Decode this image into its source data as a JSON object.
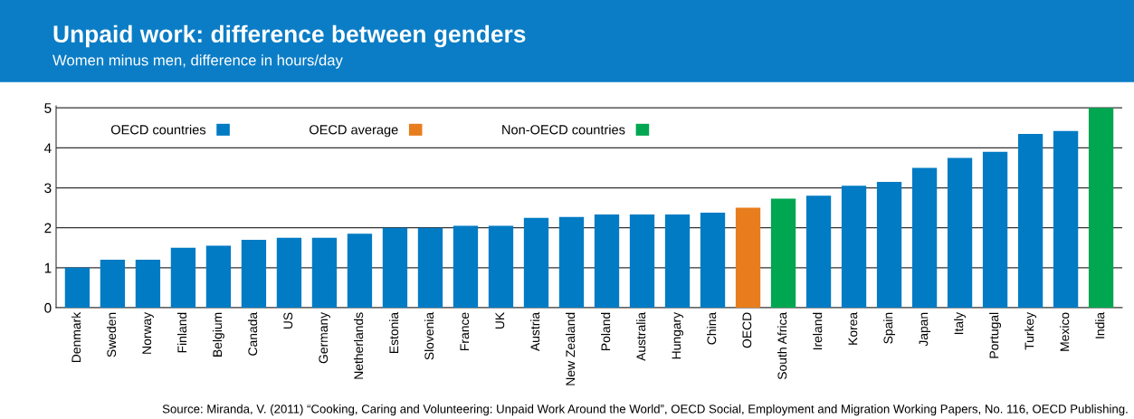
{
  "chart_data": {
    "type": "bar",
    "title": "Unpaid work: difference between genders",
    "subtitle": "Women minus men, difference in hours/day",
    "categories": [
      "Denmark",
      "Sweden",
      "Norway",
      "Finland",
      "Belgium",
      "Canada",
      "US",
      "Germany",
      "Netherlands",
      "Estonia",
      "Slovenia",
      "France",
      "UK",
      "Austria",
      "New Zealand",
      "Poland",
      "Australia",
      "Hungary",
      "China",
      "OECD",
      "South Africa",
      "Ireland",
      "Korea",
      "Spain",
      "Japan",
      "Italy",
      "Portugal",
      "Turkey",
      "Mexico",
      "India"
    ],
    "series": [
      {
        "name": "OECD countries",
        "color": "#007bc4",
        "values": [
          1.0,
          1.2,
          1.2,
          1.5,
          1.55,
          1.7,
          1.75,
          1.75,
          1.85,
          2.0,
          2.0,
          2.05,
          2.05,
          2.25,
          2.27,
          2.33,
          2.33,
          2.33,
          2.38,
          null,
          null,
          2.8,
          3.05,
          3.15,
          3.5,
          3.75,
          3.9,
          4.35,
          4.42,
          null
        ]
      },
      {
        "name": "OECD average",
        "color": "#e87d1e",
        "values": [
          null,
          null,
          null,
          null,
          null,
          null,
          null,
          null,
          null,
          null,
          null,
          null,
          null,
          null,
          null,
          null,
          null,
          null,
          null,
          2.5,
          null,
          null,
          null,
          null,
          null,
          null,
          null,
          null,
          null,
          null
        ]
      },
      {
        "name": "Non-OECD countries",
        "color": "#00a650",
        "values": [
          null,
          null,
          null,
          null,
          null,
          null,
          null,
          null,
          null,
          null,
          null,
          null,
          null,
          null,
          null,
          null,
          null,
          null,
          null,
          null,
          2.73,
          null,
          null,
          null,
          null,
          null,
          null,
          null,
          null,
          5.0
        ]
      }
    ],
    "ylim": [
      0,
      5.05
    ],
    "yticks": [
      0,
      1,
      2,
      3,
      4,
      5
    ],
    "grid": "y",
    "legend": "top left",
    "annotations": [
      "Source: Miranda, V. (2011) “Cooking, Caring and Volunteering: Unpaid Work Around the World”, OECD Social, Employment and Migration Working Papers, No. 116, OECD Publishing."
    ]
  }
}
